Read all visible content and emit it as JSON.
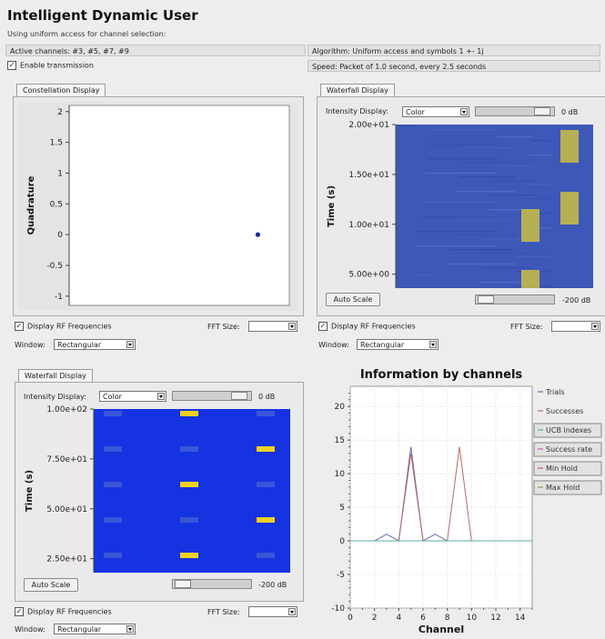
{
  "app": {
    "title": "Intelligent Dynamic User",
    "subtitle": "Using uniform access for channel selection:",
    "active_channels": "Active channels: #3, #5, #7, #9",
    "algorithm": "Algorithm: Uniform access and symbols 1 +- 1j",
    "enable_transmission": "Enable transmission",
    "speed": "Speed: Packet of 1.0 second, every 2.5 seconds"
  },
  "constellation": {
    "tab": "Constellation Display",
    "ylabel": "Quadrature",
    "yticks": [
      "2",
      "1.5",
      "1",
      "0.5",
      "0",
      "-0.5",
      "-1"
    ],
    "point": {
      "x": 1,
      "y": 0
    },
    "point_color": "#1a2aa0"
  },
  "waterfall_top": {
    "tab": "Waterfall Display",
    "intensity_label": "Intensity Display:",
    "intensity_value": "Color",
    "gain": "0 dB",
    "ylabel": "Time (s)",
    "yticks": [
      "2.00e+01",
      "1.50e+01",
      "1.00e+01",
      "5.00e+00"
    ],
    "auto_scale": "Auto Scale",
    "ref_level": "-200 dB",
    "background_color": "#3d58b8",
    "burst_color": "#c2b94a"
  },
  "top_options": {
    "display_rf": "Display RF Frequencies",
    "fft_size": "FFT Size:",
    "window_label": "Window:",
    "window_value": "Rectangular"
  },
  "waterfall_bottom": {
    "tab": "Waterfall Display",
    "intensity_label": "Intensity Display:",
    "intensity_value": "Color",
    "gain": "0 dB",
    "ylabel": "Time (s)",
    "yticks": [
      "1.00e+02",
      "7.50e+01",
      "5.00e+01",
      "2.50e+01"
    ],
    "auto_scale": "Auto Scale",
    "ref_level": "-200 dB",
    "background_color": "#1533e0",
    "burst_color": "#f0d020"
  },
  "bottom_options": {
    "display_rf": "Display RF Frequencies",
    "fft_size": "FFT Size:",
    "window_label": "Window:",
    "window_value": "Rectangular"
  },
  "chart_data": {
    "type": "line",
    "title": "Information by channels",
    "xlabel": "Channel",
    "ylabel": "",
    "xlim": [
      0,
      15
    ],
    "ylim": [
      -10,
      23
    ],
    "xticks": [
      0,
      2,
      4,
      6,
      8,
      10,
      12,
      14
    ],
    "yticks": [
      -10,
      -5,
      0,
      5,
      10,
      15,
      20
    ],
    "grid": true,
    "legend_position": "right",
    "series": [
      {
        "name": "Trials",
        "color": "#6a6aa8",
        "x": [
          0,
          1,
          2,
          3,
          4,
          5,
          6,
          7,
          8,
          9,
          10,
          11,
          12,
          13,
          14,
          15
        ],
        "y": [
          0,
          0,
          0,
          1,
          0,
          14,
          0,
          1,
          0,
          0,
          0,
          0,
          0,
          0,
          0,
          0
        ]
      },
      {
        "name": "Successes",
        "color": "#b86a6a",
        "x": [
          0,
          1,
          2,
          3,
          4,
          5,
          6,
          7,
          8,
          9,
          10,
          11,
          12,
          13,
          14,
          15
        ],
        "y": [
          0,
          0,
          0,
          0,
          0,
          13,
          0,
          0,
          0,
          14,
          0,
          0,
          0,
          0,
          0,
          0
        ]
      },
      {
        "name": "UCB indexes",
        "color": "#5aa8a8",
        "x": [
          0,
          1,
          2,
          3,
          4,
          5,
          6,
          7,
          8,
          9,
          10,
          11,
          12,
          13,
          14,
          15
        ],
        "y": [
          0,
          0,
          0,
          0,
          0,
          0,
          0,
          0,
          0,
          0,
          0,
          0,
          0,
          0,
          0,
          0
        ]
      },
      {
        "name": "Success rate",
        "color": "#c060b0",
        "x": [],
        "y": []
      },
      {
        "name": "Min Hold",
        "color": "#c06060",
        "x": [],
        "y": []
      },
      {
        "name": "Max Hold",
        "color": "#90a060",
        "x": [],
        "y": []
      }
    ]
  }
}
